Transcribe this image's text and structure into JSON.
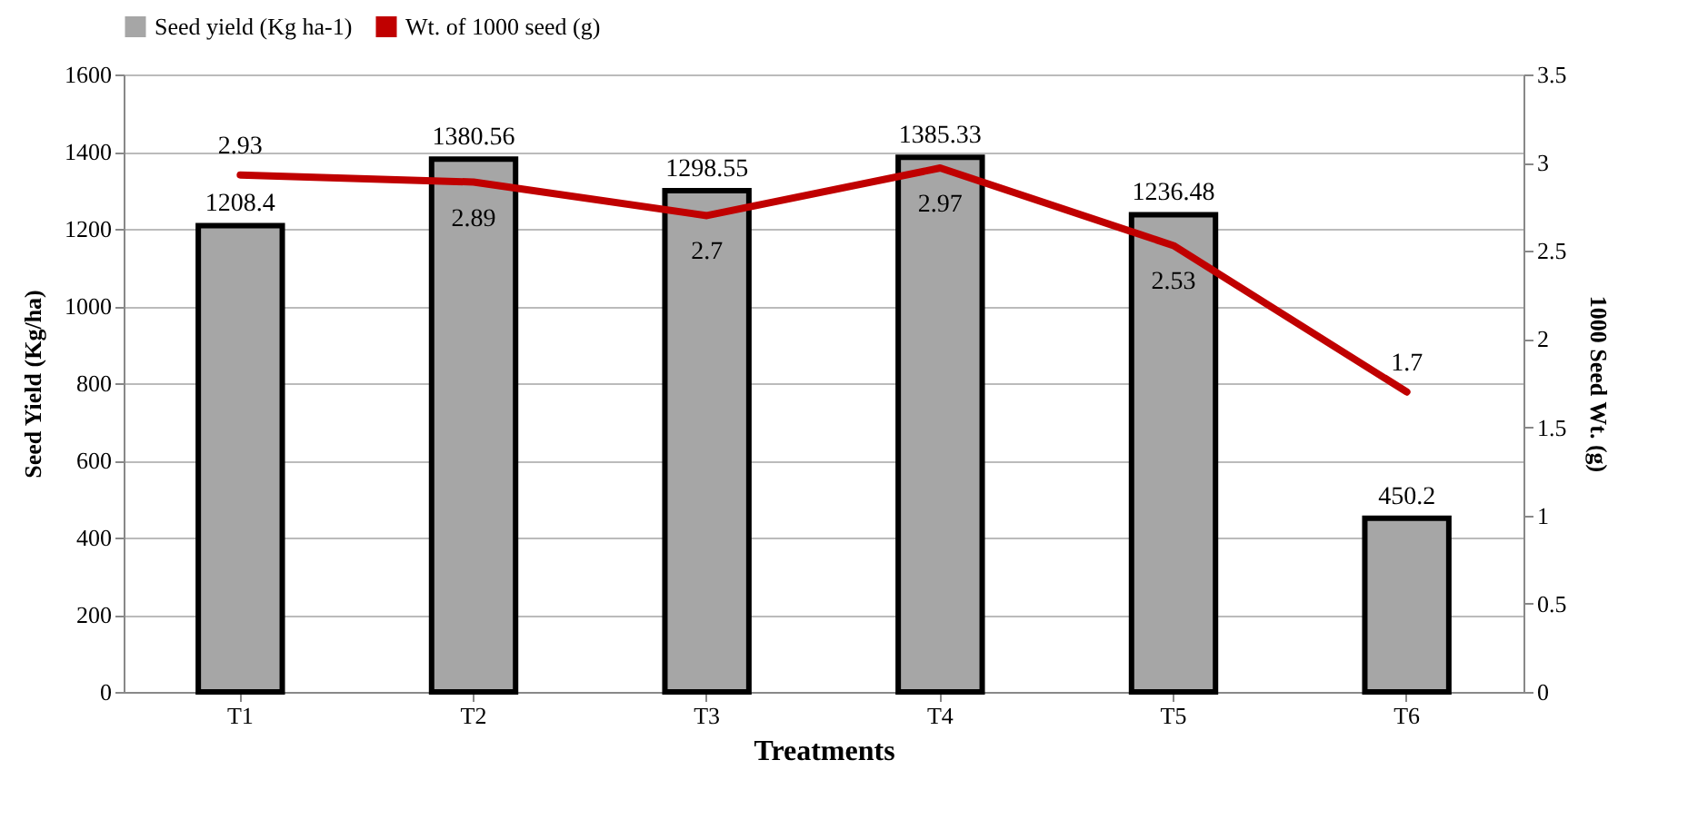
{
  "chart_data": {
    "type": "bar",
    "categories": [
      "T1",
      "T2",
      "T3",
      "T4",
      "T5",
      "T6"
    ],
    "series": [
      {
        "name": "Seed yield (Kg ha-1)",
        "type": "bar",
        "color": "#a6a6a6",
        "values": [
          1208.4,
          1380.56,
          1298.55,
          1385.33,
          1236.48,
          450.2
        ]
      },
      {
        "name": "Wt. of 1000 seed (g)",
        "type": "line",
        "axis": "y2",
        "color": "#c00000",
        "values": [
          2.93,
          2.89,
          2.7,
          2.97,
          2.53,
          1.7
        ]
      }
    ],
    "xlabel": "Treatments",
    "ylabel": "Seed Yield  (Kg/ha)",
    "y2label": "1000 Seed Wt. (g)",
    "ylim": [
      0,
      1600
    ],
    "yticks": [
      0,
      200,
      400,
      600,
      800,
      1000,
      1200,
      1400,
      1600
    ],
    "y2lim": [
      0,
      3.5
    ],
    "y2ticks": [
      0,
      0.5,
      1,
      1.5,
      2,
      2.5,
      3,
      3.5
    ],
    "data_labels": true,
    "grid": "y",
    "legend": "top"
  }
}
